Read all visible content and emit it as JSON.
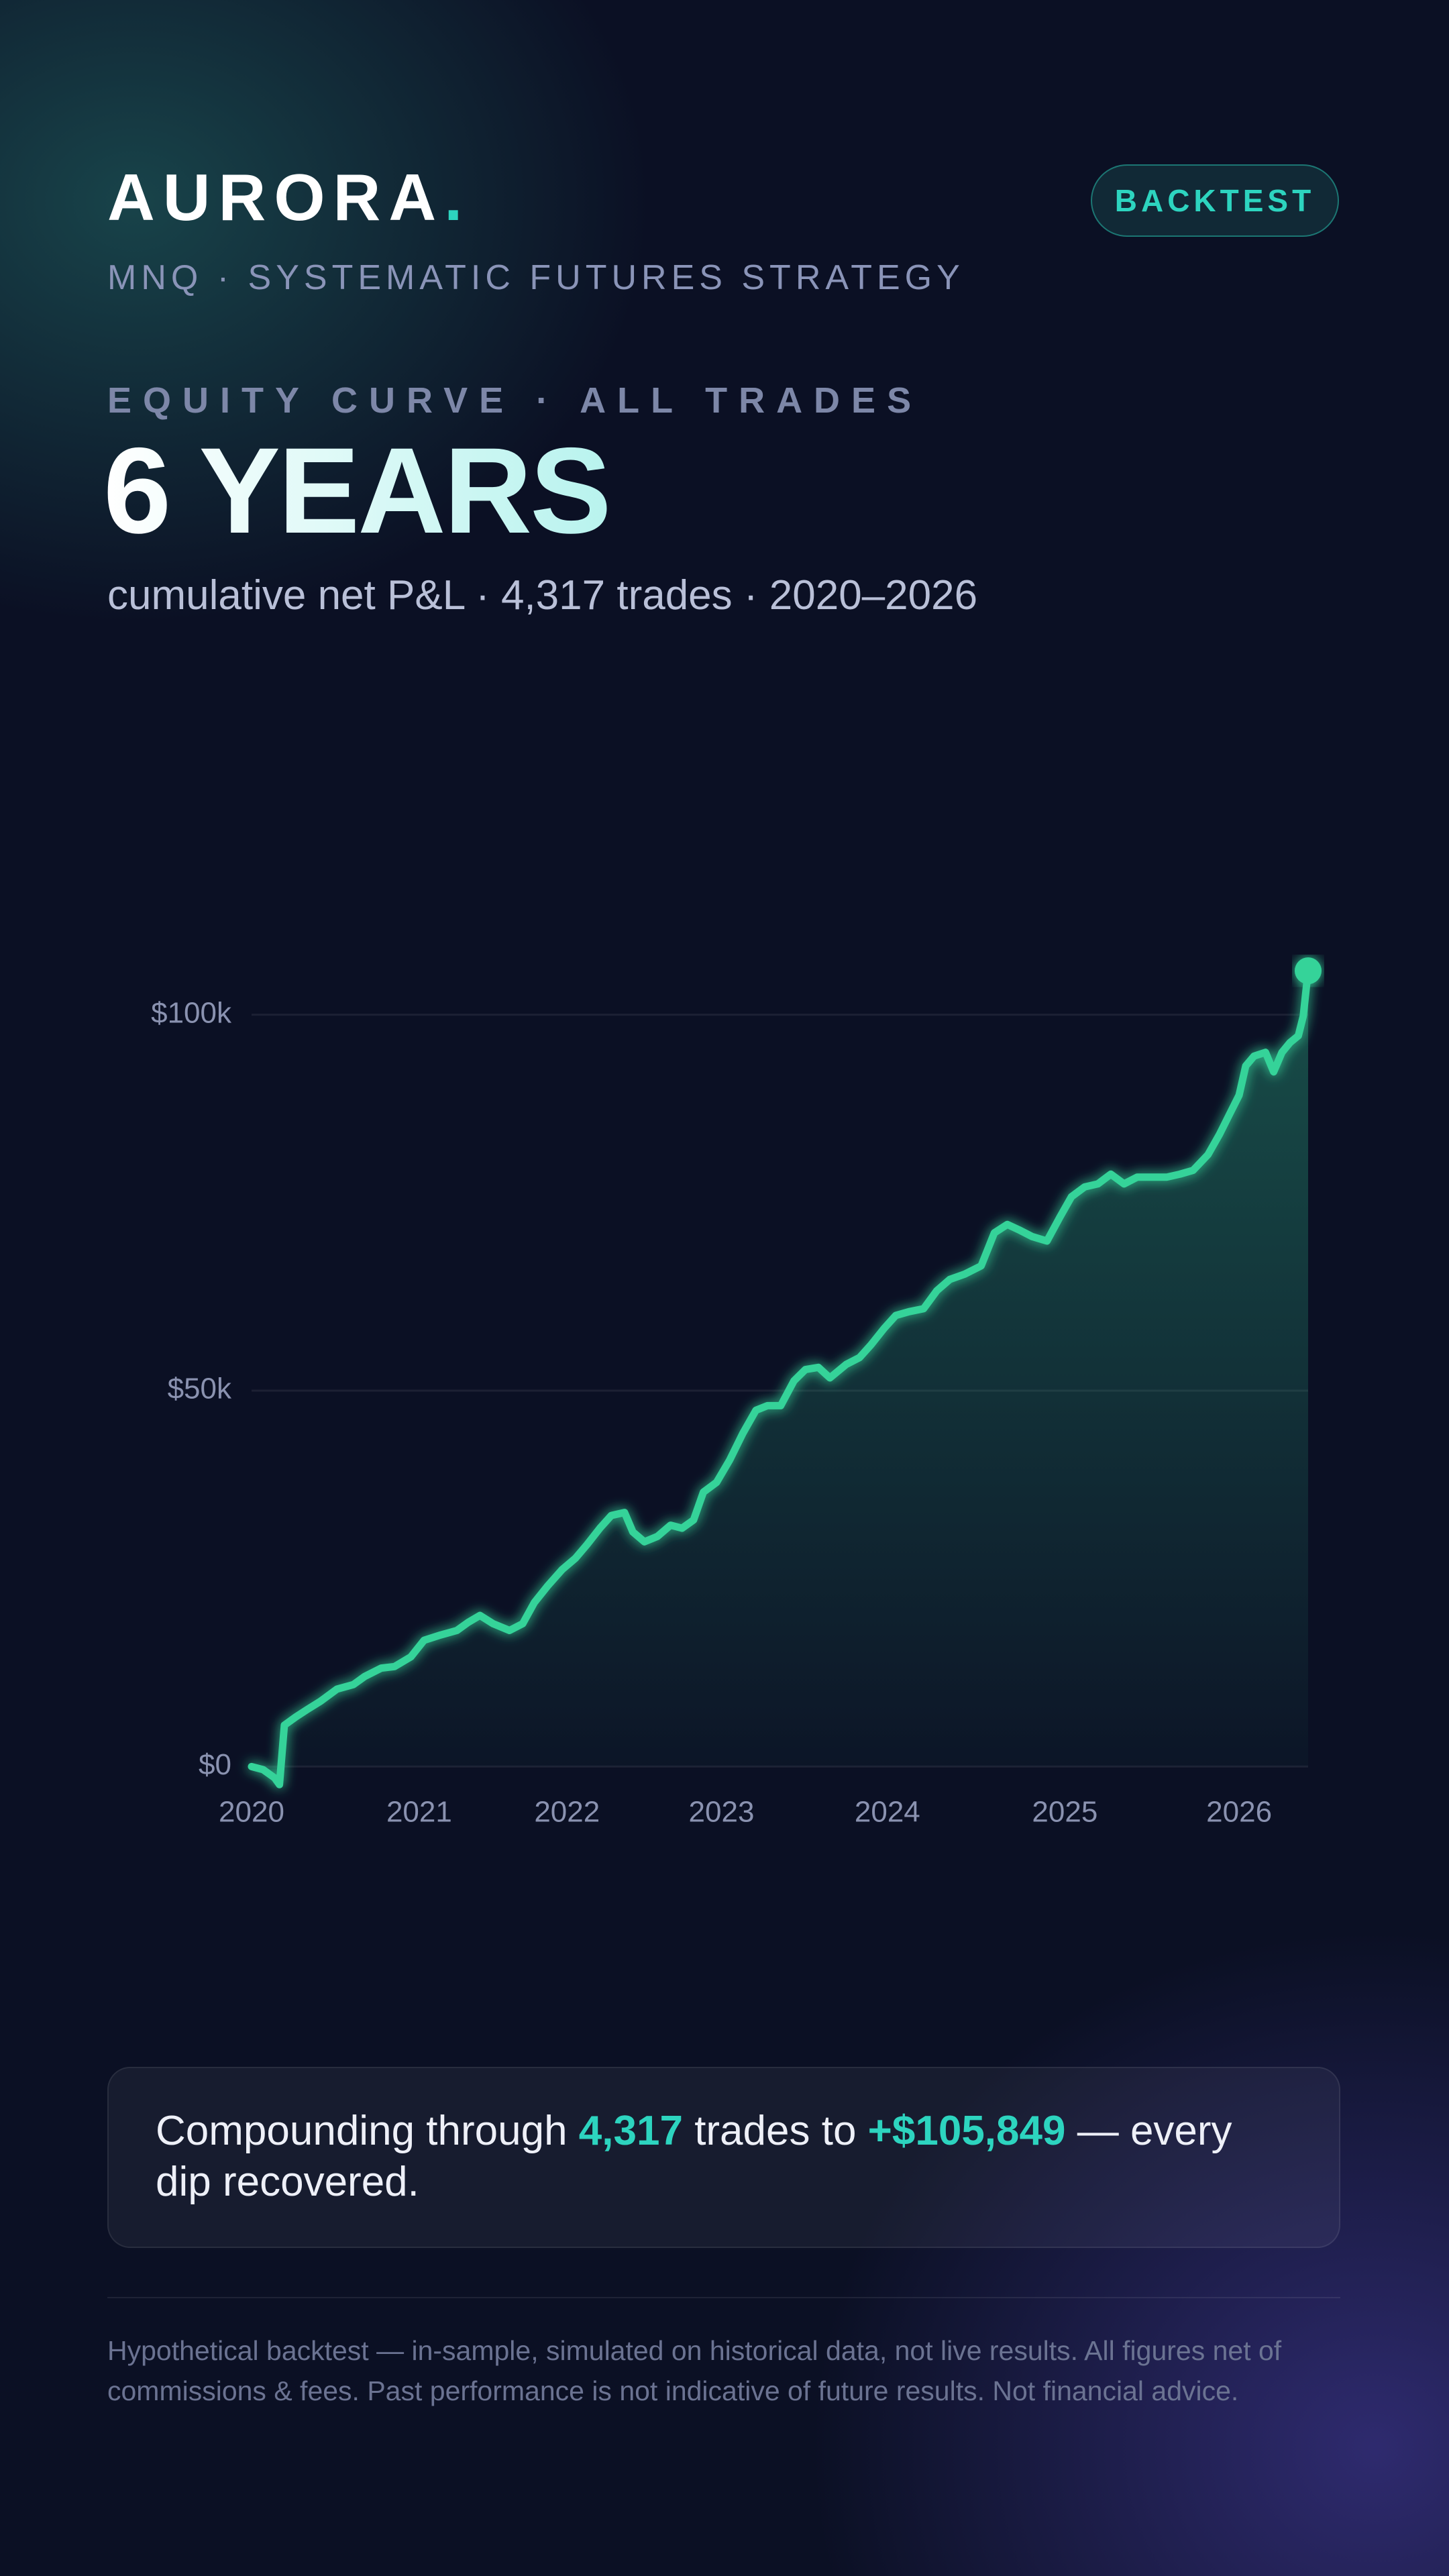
{
  "header": {
    "brand": "AURORA",
    "brand_dot": ".",
    "badge": "BACKTEST",
    "subtitle": "MNQ · SYSTEMATIC FUTURES STRATEGY"
  },
  "hero": {
    "kicker": "EQUITY CURVE · ALL TRADES",
    "headline": "6 YEARS",
    "caption": "cumulative net P&L · 4,317 trades · 2020–2026"
  },
  "chart_data": {
    "type": "line",
    "x": [
      0,
      47,
      94,
      114,
      134,
      181,
      228,
      282,
      349,
      416,
      463,
      530,
      584,
      651,
      705,
      772,
      839,
      886,
      933,
      987,
      1054,
      1108,
      1155,
      1209,
      1269,
      1323,
      1370,
      1423,
      1470,
      1524,
      1558,
      1605,
      1658,
      1712,
      1759,
      1806,
      1846,
      1900,
      1954,
      2007,
      2061,
      2108,
      2162,
      2216,
      2263,
      2316,
      2363,
      2430,
      2484,
      2531,
      2585,
      2632,
      2686,
      2746,
      2800,
      2853,
      2914,
      2981,
      3035,
      3088,
      3135,
      3189,
      3250,
      3303,
      3350,
      3404,
      3458,
      3511,
      3565,
      3619,
      3673,
      3740,
      3793,
      3847,
      3908,
      3955,
      3995,
      4035,
      4062,
      4096,
      4143,
      4176,
      4210,
      4243,
      4277,
      4297,
      4317
    ],
    "series": [
      {
        "color": "#34d399",
        "values": [
          0,
          -400,
          -1500,
          -2400,
          5500,
          6600,
          7600,
          8700,
          10300,
          10900,
          12000,
          13100,
          13300,
          14600,
          16800,
          17500,
          18100,
          19200,
          20100,
          19000,
          18100,
          19000,
          21800,
          24000,
          26200,
          27700,
          29500,
          31700,
          33400,
          33800,
          31200,
          29900,
          30600,
          32100,
          31700,
          32800,
          36500,
          37800,
          40800,
          44300,
          47400,
          48000,
          48000,
          51300,
          52800,
          53100,
          51700,
          53500,
          54400,
          56100,
          58300,
          60000,
          60500,
          60900,
          63300,
          64800,
          65500,
          66600,
          71000,
          72100,
          71400,
          70500,
          69900,
          73100,
          75800,
          77100,
          77500,
          78800,
          77500,
          78400,
          78400,
          78400,
          78800,
          79300,
          81400,
          84100,
          86700,
          89300,
          93200,
          94500,
          95000,
          92400,
          95000,
          96300,
          97200,
          99800,
          105849
        ]
      }
    ],
    "xlim": [
      0,
      4317
    ],
    "xticks": [
      {
        "value": 0,
        "label": "2020"
      },
      {
        "value": 685,
        "label": "2021"
      },
      {
        "value": 1289,
        "label": "2022"
      },
      {
        "value": 1920,
        "label": "2023"
      },
      {
        "value": 2598,
        "label": "2024"
      },
      {
        "value": 3323,
        "label": "2025"
      },
      {
        "value": 4035,
        "label": "2026"
      }
    ],
    "ylim": [
      -3000,
      108000
    ],
    "yticks": [
      {
        "value": 0,
        "label": "$0"
      },
      {
        "value": 50000,
        "label": "$50k"
      },
      {
        "value": 100000,
        "label": "$100k"
      }
    ],
    "grid": true
  },
  "callout": [
    "Compounding through",
    "4,317",
    "trades to",
    "+$105,849",
    "— every dip recovered."
  ],
  "footer": {
    "disclaimer": "Hypothetical backtest — in-sample, simulated on historical data, not live results. All figures net of commissions & fees. Past performance is not indicative of future results. Not financial advice."
  }
}
